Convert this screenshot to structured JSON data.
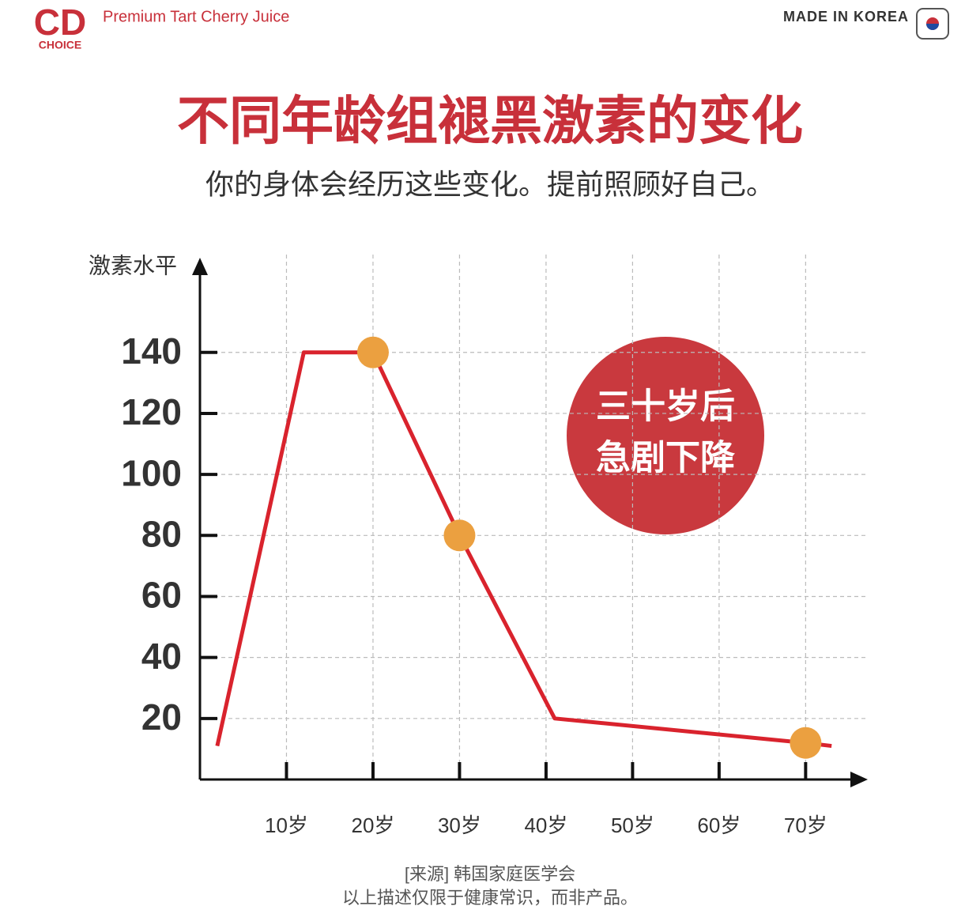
{
  "header": {
    "logo": "CD",
    "logo_sub": "CHOICE",
    "tagline": "Premium Tart Cherry Juice",
    "origin": "MADE IN KOREA"
  },
  "chart_data": {
    "type": "line",
    "title": "不同年龄组褪黑激素的变化",
    "subtitle": "你的身体会经历这些变化。提前照顾好自己。",
    "ylabel": "激素水平",
    "annotation": [
      "三十岁后",
      "急剧下降"
    ],
    "source": [
      "[来源] 韩国家庭医学会",
      "以上描述仅限于健康常识，而非产品。"
    ],
    "x": [
      2,
      12,
      20,
      30,
      41,
      70,
      73
    ],
    "values": [
      11,
      140,
      140,
      80,
      20,
      12,
      11
    ],
    "color": "#d9232d",
    "markers": {
      "x": [
        20,
        30,
        70
      ],
      "values": [
        140,
        80,
        12
      ],
      "color": "#eba040"
    },
    "xlim": [
      0,
      77
    ],
    "ylim": [
      0,
      170
    ],
    "xticks": [
      {
        "value": 10,
        "label": "10岁"
      },
      {
        "value": 20,
        "label": "20岁"
      },
      {
        "value": 30,
        "label": "30岁"
      },
      {
        "value": 40,
        "label": "40岁"
      },
      {
        "value": 50,
        "label": "50岁"
      },
      {
        "value": 60,
        "label": "60岁"
      },
      {
        "value": 70,
        "label": "70岁"
      }
    ],
    "yticks": [
      20,
      40,
      60,
      80,
      100,
      120,
      140
    ],
    "grid": true
  }
}
